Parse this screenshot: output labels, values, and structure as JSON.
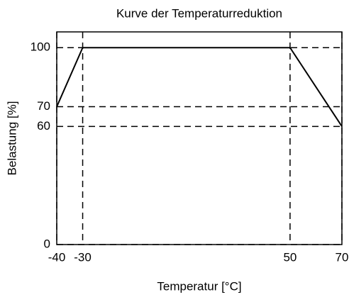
{
  "chart_data": {
    "type": "line",
    "title": "Kurve der Temperaturreduktion",
    "x_label": "Temperatur [°C]",
    "y_label": "Belastung [%]",
    "x": [
      -40,
      -30,
      50,
      70
    ],
    "series": [
      {
        "name": "Belastung",
        "color": "#000000",
        "values": [
          70,
          100,
          100,
          60
        ]
      }
    ],
    "xlim": [
      -40,
      70
    ],
    "xticks": [
      -40,
      -30,
      50,
      70
    ],
    "ylim": [
      0,
      108
    ],
    "yticks": [
      0,
      60,
      70,
      100
    ],
    "grid": true
  }
}
